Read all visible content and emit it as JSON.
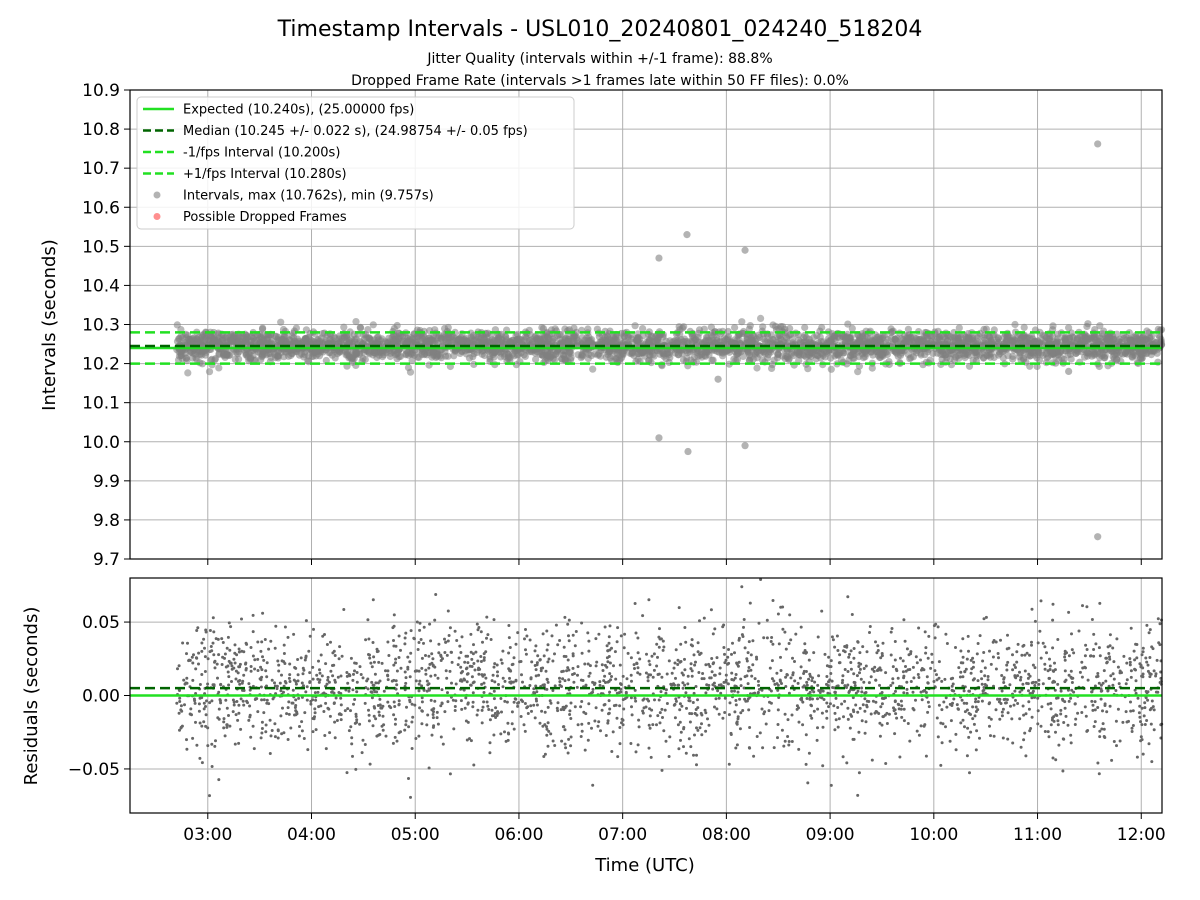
{
  "chart_data": {
    "title": "Timestamp Intervals - USL010_20240801_024240_518204",
    "subtitle_lines": [
      "Jitter Quality (intervals within +/-1 frame): 88.8%",
      "Dropped Frame Rate (intervals >1 frames late within 50 FF files): 0.0%"
    ],
    "xlabel": "Time (UTC)",
    "x_tick_labels": [
      "03:00",
      "04:00",
      "05:00",
      "06:00",
      "07:00",
      "08:00",
      "09:00",
      "10:00",
      "11:00",
      "12:00"
    ],
    "xlim_hours": [
      2.25,
      12.2
    ],
    "data_range_hours": [
      2.7,
      12.2
    ],
    "top": {
      "type": "scatter",
      "ylabel": "Intervals (seconds)",
      "ylim": [
        9.7,
        10.9
      ],
      "y_tick_labels": [
        "9.7",
        "9.8",
        "9.9",
        "10.0",
        "10.1",
        "10.2",
        "10.3",
        "10.4",
        "10.5",
        "10.6",
        "10.7",
        "10.8",
        "10.9"
      ],
      "grid": true,
      "legend_position": "top-left",
      "expected": 10.24,
      "median": 10.245,
      "lower_interval": 10.2,
      "upper_interval": 10.28,
      "typical_spread": 0.022,
      "outliers": [
        {
          "t": 7.35,
          "y": 10.47
        },
        {
          "t": 7.62,
          "y": 10.53
        },
        {
          "t": 8.18,
          "y": 10.49
        },
        {
          "t": 11.58,
          "y": 10.762
        },
        {
          "t": 11.58,
          "y": 9.757
        },
        {
          "t": 7.35,
          "y": 10.01
        },
        {
          "t": 7.63,
          "y": 9.975
        },
        {
          "t": 8.18,
          "y": 9.99
        },
        {
          "t": 7.92,
          "y": 10.16
        },
        {
          "t": 11.3,
          "y": 10.18
        }
      ],
      "legend": [
        {
          "label": "Expected (10.240s), (25.00000 fps)",
          "style": "solid",
          "color": "#22e022"
        },
        {
          "label": "Median (10.245 +/- 0.022 s), (24.98754 +/- 0.05 fps)",
          "style": "dashed",
          "color": "#006400"
        },
        {
          "label": "-1/fps Interval (10.200s)",
          "style": "dashed",
          "color": "#22e022"
        },
        {
          "label": "+1/fps Interval (10.280s)",
          "style": "dashed",
          "color": "#22e022"
        },
        {
          "label": "Intervals, max (10.762s), min (9.757s)",
          "style": "marker",
          "color": "#808080"
        },
        {
          "label": "Possible Dropped Frames",
          "style": "marker",
          "color": "#ff4444"
        }
      ]
    },
    "bottom": {
      "type": "scatter",
      "ylabel": "Residuals (seconds)",
      "ylim": [
        -0.08,
        0.08
      ],
      "y_ticks": [
        -0.05,
        0.0,
        0.05
      ],
      "y_tick_labels": [
        "−0.05",
        "0.00",
        "0.05"
      ],
      "expected": 0.0,
      "median": 0.005,
      "grid": true
    },
    "colors": {
      "expected": "#22e022",
      "median": "#006400",
      "points": "#808080",
      "dropped": "#ff4444",
      "grid": "#b0b0b0"
    }
  }
}
